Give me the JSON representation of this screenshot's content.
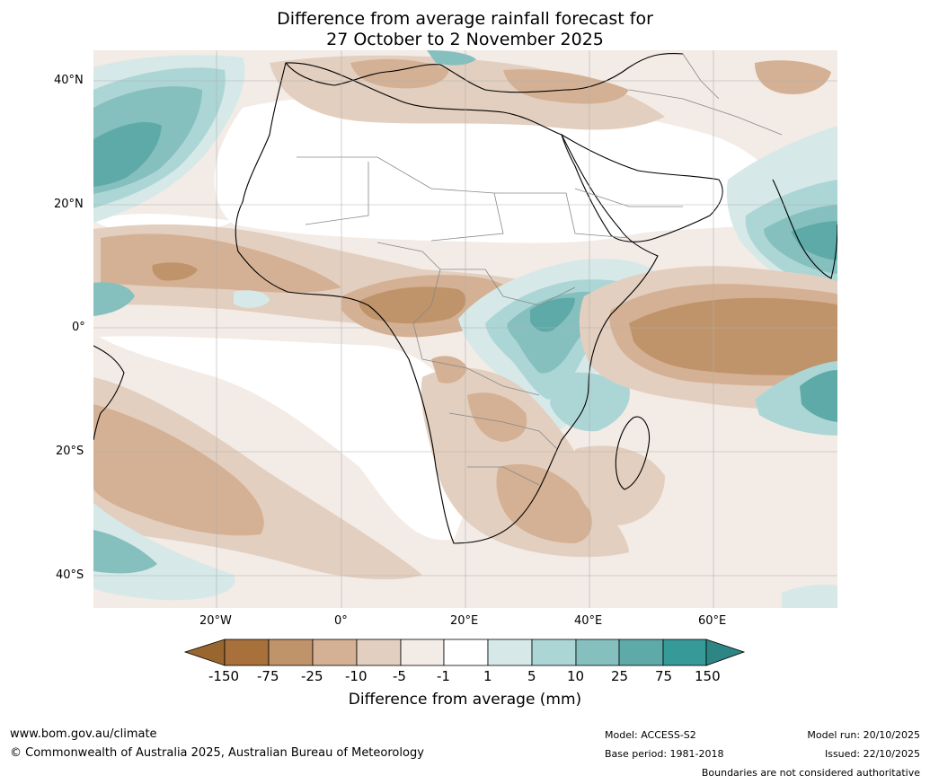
{
  "title": {
    "line1": "Difference from average rainfall forecast for",
    "line2": "27 October to 2 November 2025"
  },
  "axes": {
    "lat_labels": [
      "40°N",
      "20°N",
      "0°",
      "20°S",
      "40°S"
    ],
    "lon_labels": [
      "20°W",
      "0°",
      "20°E",
      "40°E",
      "60°E"
    ]
  },
  "colorbar": {
    "title": "Difference from average (mm)",
    "tick_labels": [
      "-150",
      "-75",
      "-25",
      "-10",
      "-5",
      "-1",
      "1",
      "5",
      "10",
      "25",
      "75",
      "150"
    ],
    "colors": [
      "#a8703a",
      "#c0946a",
      "#d4b194",
      "#e3cfbf",
      "#f3ebe6",
      "#ffffff",
      "#d6e9e8",
      "#acd6d5",
      "#85c0bf",
      "#5eaaa9",
      "#359a98",
      "#2e8684",
      "#9a6630"
    ]
  },
  "footer": {
    "website": "www.bom.gov.au/climate",
    "copyright": "© Commonwealth of Australia 2025, Australian Bureau of Meteorology",
    "model": "Model: ACCESS-S2",
    "base_period": "Base period: 1981-2018",
    "model_run": "Model run: 20/10/2025",
    "issued": "Issued: 22/10/2025",
    "disclaimer": "Boundaries are not considered authoritative"
  }
}
